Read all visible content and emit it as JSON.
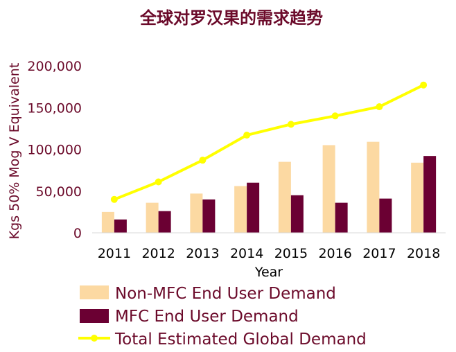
{
  "chart_data": {
    "type": "bar+line",
    "title": "全球对罗汉果的需求趋势",
    "xlabel": "Year",
    "ylabel": "Kgs 50% Mog V Equivalent",
    "categories": [
      "2011",
      "2012",
      "2013",
      "2014",
      "2015",
      "2016",
      "2017",
      "2018"
    ],
    "ylim": [
      0,
      200000
    ],
    "yticks": [
      0,
      50000,
      100000,
      150000,
      200000
    ],
    "ytick_labels": [
      "0",
      "50,000",
      "100,000",
      "150,000",
      "200,000"
    ],
    "grid": false,
    "legend_position": "bottom",
    "series": [
      {
        "name": "Non-MFC End User Demand",
        "type": "bar",
        "color": "#fcd9a2",
        "values": [
          25000,
          36000,
          47000,
          56000,
          85000,
          105000,
          109000,
          84000
        ]
      },
      {
        "name": "MFC End User Demand",
        "type": "bar",
        "color": "#6b0033",
        "values": [
          16000,
          26000,
          40000,
          60000,
          45000,
          36000,
          41000,
          92000
        ]
      },
      {
        "name": "Total Estimated Global Demand",
        "type": "line",
        "color": "#ffff00",
        "values": [
          40000,
          61000,
          87000,
          117000,
          130000,
          140000,
          151000,
          177000
        ]
      }
    ]
  }
}
